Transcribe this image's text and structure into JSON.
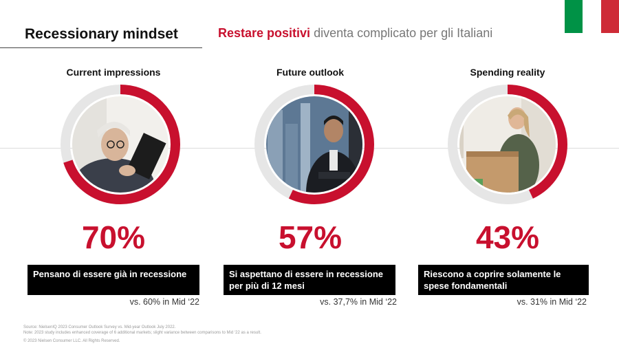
{
  "header": {
    "title": "Recessionary mindset",
    "subtitle_highlight": "Restare positivi",
    "subtitle_rest": "diventa complicato per gli Italiani"
  },
  "flag": {
    "colors": [
      "#009246",
      "#ffffff",
      "#ce2b37"
    ]
  },
  "colors": {
    "accent": "#c8102e",
    "ring_track": "#e6e6e6"
  },
  "columns": [
    {
      "label": "Current impressions",
      "percent": "70%",
      "value": 70,
      "statement": "Pensano di essere già in recessione",
      "comparison": "vs. 60% in Mid ‘22",
      "image": "woman-with-glasses-reading-tablet"
    },
    {
      "label": "Future outlook",
      "percent": "57%",
      "value": 57,
      "statement": "Si aspettano di essere in recessione per più di 12 mesi",
      "comparison": "vs. 37,7% in Mid ‘22",
      "image": "man-in-suit-at-city-window"
    },
    {
      "label": "Spending reality",
      "percent": "43%",
      "value": 43,
      "statement": "Riescono a coprire solamente le spese fondamentali",
      "comparison": "vs. 31% in Mid ‘22",
      "image": "woman-opening-cardboard-box"
    }
  ],
  "footer": {
    "source": "Source: NielsenIQ 2023 Consumer Outlook Survey vs. Mid-year Outlook July 2022.",
    "note": "Note: 2023 study includes enhanced coverage of 6 additional markets; slight variance between comparisons to Mid ‘22 as a result.",
    "copyright": "© 2023 Nielsen Consumer LLC. All Rights Reserved."
  }
}
